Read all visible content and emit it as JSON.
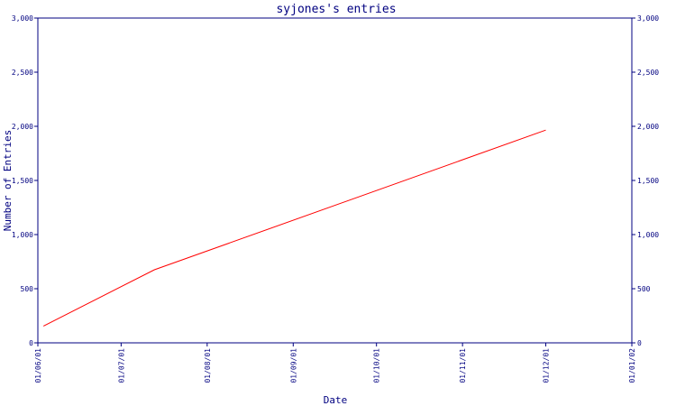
{
  "chart_data": {
    "type": "line",
    "title": "syjones's entries",
    "xlabel": "Date",
    "ylabel": "Number of Entries",
    "x_ticks": [
      "01/06/01",
      "01/07/01",
      "01/08/01",
      "01/09/01",
      "01/10/01",
      "01/11/01",
      "01/12/01",
      "01/01/02"
    ],
    "y_ticks": [
      0,
      500,
      1000,
      1500,
      2000,
      2500,
      3000
    ],
    "y_tick_labels": [
      "0",
      "500",
      "1,000",
      "1,500",
      "2,000",
      "2,500",
      "3,000"
    ],
    "ylim": [
      0,
      3000
    ],
    "xlim": [
      "2001-06-01",
      "2002-01-01"
    ],
    "grid": false,
    "right_axis": true,
    "series": [
      {
        "color": "#ff0000",
        "points": [
          {
            "x": "2001-06-03",
            "y": 155
          },
          {
            "x": "2001-07-13",
            "y": 675
          },
          {
            "x": "2001-12-01",
            "y": 1965
          }
        ]
      }
    ]
  }
}
